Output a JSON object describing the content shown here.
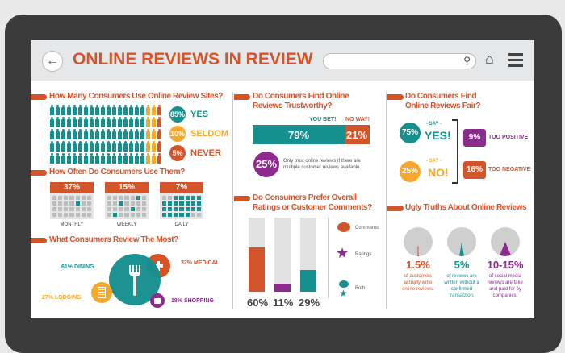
{
  "header": {
    "title": "ONLINE REVIEWS IN REVIEW",
    "back_icon": "back-arrow-icon",
    "search_placeholder": "",
    "search_icon": "search-icon",
    "home_icon": "home-icon",
    "menu_icon": "menu-icon"
  },
  "colors": {
    "teal": "#168f8f",
    "orange": "#d4542a",
    "yellow": "#f5a82b",
    "purple": "#8c2a8e",
    "gray": "#cfcfcf"
  },
  "usage": {
    "title": "How Many Consumers Use Online Review Sites?",
    "items": [
      {
        "pct": "85%",
        "label": "YES",
        "value": 85
      },
      {
        "pct": "10%",
        "label": "SELDOM",
        "value": 10
      },
      {
        "pct": "5%",
        "label": "NEVER",
        "value": 5
      }
    ]
  },
  "frequency": {
    "title": "How Often Do Consumers Use Them?",
    "items": [
      {
        "pct": "37%",
        "label": "MONTHLY",
        "filled": 1
      },
      {
        "pct": "15%",
        "label": "WEEKLY",
        "filled": 4
      },
      {
        "pct": "7%",
        "label": "DAILY",
        "filled": 24
      }
    ]
  },
  "review_most": {
    "title": "What Consumers Review The Most?",
    "items": [
      {
        "label": "61% DINING",
        "value": 61
      },
      {
        "label": "32% MEDICAL",
        "value": 32
      },
      {
        "label": "27% LODGING",
        "value": 27
      },
      {
        "label": "18% SHOPPING",
        "value": 18
      }
    ]
  },
  "trust": {
    "title1": "Do Consumers Find Online",
    "title2": "Reviews Trustworthy?",
    "yes_label": "YOU BET!",
    "no_label": "NO WAY!",
    "yes_pct": "79%",
    "no_pct": "21%",
    "yes_value": 79,
    "multi_pct": "25%",
    "multi_text": "Only trust online reviews if there are multiple customer reviews available."
  },
  "prefer": {
    "title1": "Do Consumers Prefer Overall",
    "title2": "Ratings or Customer Comments?",
    "bars": [
      {
        "pct": "60%",
        "value": 60
      },
      {
        "pct": "11%",
        "value": 11
      },
      {
        "pct": "29%",
        "value": 29
      }
    ],
    "legend": [
      "Comments",
      "Ratings",
      "Both"
    ]
  },
  "fair": {
    "title1": "Do Consumers Find",
    "title2": "Online Reviews Fair?",
    "yes_pct": "75%",
    "say": "- SAY -",
    "yes": "YES!",
    "no_pct": "25%",
    "no": "NO!",
    "pos_pct": "9%",
    "pos_label": "TOO POSITIVE",
    "neg_pct": "16%",
    "neg_label": "TOO NEGATIVE"
  },
  "ugly": {
    "title": "Ugly Truths About Online Reviews",
    "items": [
      {
        "pct": "1.5%",
        "text": "of customers actually write online reviews.",
        "value": 1.5
      },
      {
        "pct": "5%",
        "text": "of reviews are written without a confirmed transaction.",
        "value": 5
      },
      {
        "pct": "10-15%",
        "text": "of social media reviews are fake and paid for by companies.",
        "value": 12.5
      }
    ]
  }
}
